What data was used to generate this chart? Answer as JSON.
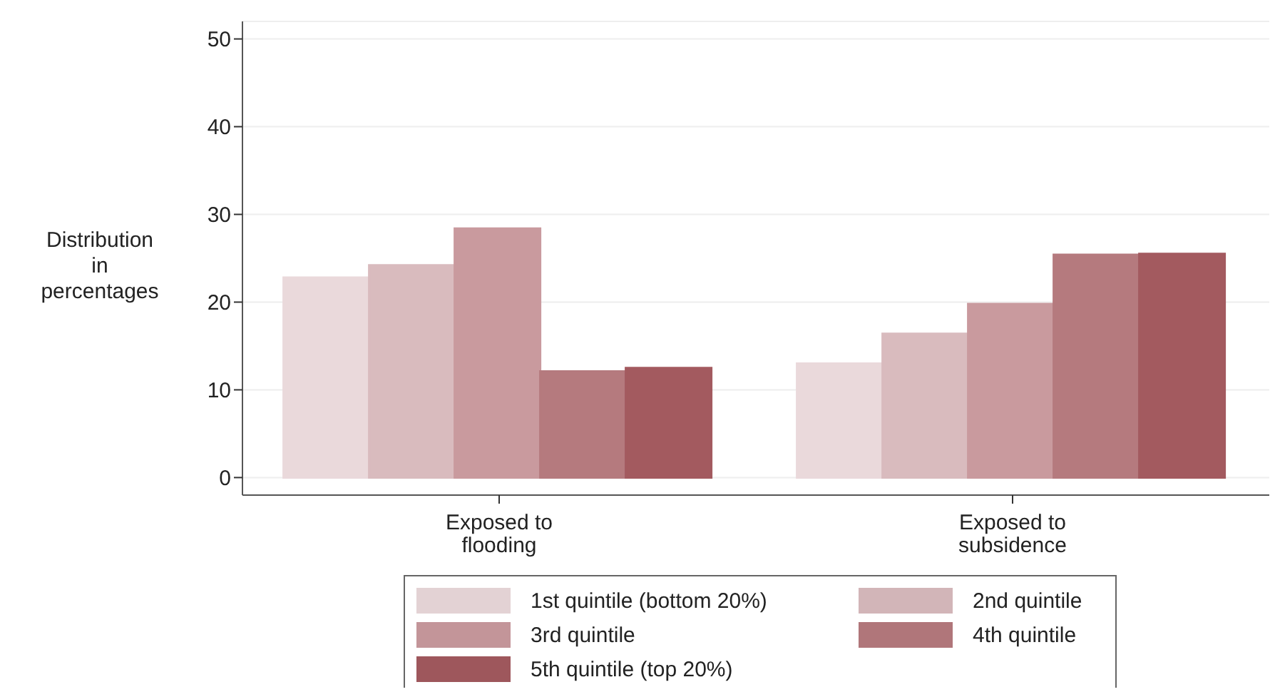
{
  "chart_data": {
    "type": "bar",
    "ylabel": "Distribution in percentages",
    "categories": [
      "Exposed to flooding",
      "Exposed to subsidence"
    ],
    "series": [
      {
        "name": "1st quintile (bottom 20%)",
        "color": "#ead9db",
        "values": [
          22.8,
          13.0
        ]
      },
      {
        "name": "2nd quintile",
        "color": "#d9bbbe",
        "values": [
          24.2,
          16.4
        ]
      },
      {
        "name": "3rd quintile",
        "color": "#c99a9e",
        "values": [
          28.4,
          19.8
        ]
      },
      {
        "name": "4th quintile",
        "color": "#b57a7e",
        "values": [
          12.1,
          25.4
        ]
      },
      {
        "name": "5th quintile (top 20%)",
        "color": "#a35a5f",
        "values": [
          12.5,
          25.5
        ]
      }
    ],
    "ylim": [
      -2,
      52
    ],
    "yticks": [
      0,
      10,
      20,
      30,
      40,
      50
    ],
    "grid": "y",
    "legend": "bottom"
  }
}
